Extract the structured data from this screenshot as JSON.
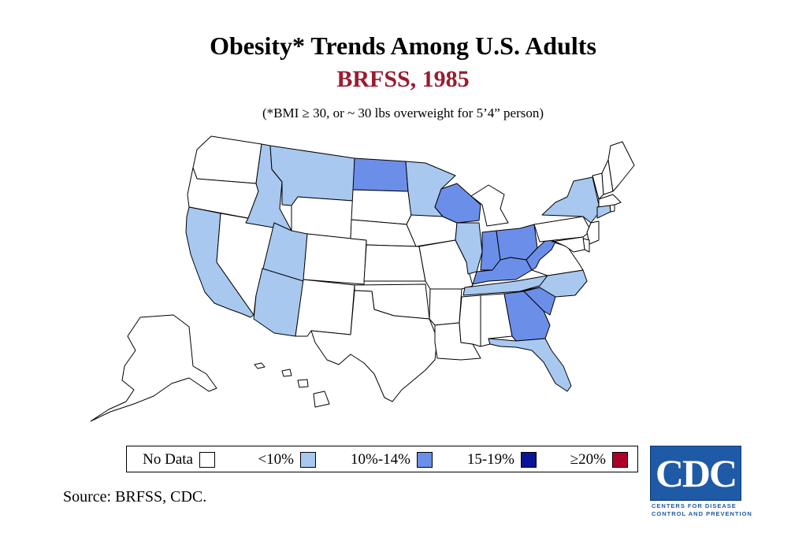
{
  "title": "Obesity* Trends Among U.S. Adults",
  "subtitle": "BRFSS, 1985",
  "footnote": "(*BMI ≥ 30, or ~ 30 lbs overweight for 5’4” person)",
  "source": "Source: BRFSS, CDC.",
  "colors": {
    "no_data": "#ffffff",
    "lt10": "#a8c8f0",
    "10_14": "#6b8ee8",
    "15_19": "#0a1496",
    "ge20": "#b0002a",
    "subtitle": "#9b1b30"
  },
  "legend": [
    {
      "label": "No Data",
      "key": "no_data"
    },
    {
      "label": "<10%",
      "key": "lt10"
    },
    {
      "label": "10%-14%",
      "key": "10_14"
    },
    {
      "label": "15-19%",
      "key": "15_19"
    },
    {
      "label": "≥20%",
      "key": "ge20"
    }
  ],
  "states": {
    "WA": "no_data",
    "OR": "no_data",
    "CA": "lt10",
    "NV": "no_data",
    "ID": "lt10",
    "MT": "lt10",
    "WY": "no_data",
    "UT": "lt10",
    "AZ": "lt10",
    "CO": "no_data",
    "NM": "no_data",
    "ND": "10_14",
    "SD": "no_data",
    "NE": "no_data",
    "KS": "no_data",
    "OK": "no_data",
    "TX": "no_data",
    "MN": "lt10",
    "IA": "no_data",
    "MO": "no_data",
    "AR": "no_data",
    "LA": "no_data",
    "WI": "10_14",
    "IL": "lt10",
    "MI": "no_data",
    "IN": "10_14",
    "OH": "10_14",
    "KY": "10_14",
    "TN": "lt10",
    "MS": "no_data",
    "AL": "no_data",
    "GA": "10_14",
    "FL": "lt10",
    "SC": "10_14",
    "NC": "lt10",
    "VA": "no_data",
    "WV": "10_14",
    "PA": "no_data",
    "NY": "lt10",
    "VT": "no_data",
    "NH": "no_data",
    "ME": "no_data",
    "MA": "no_data",
    "RI": "no_data",
    "CT": "lt10",
    "NJ": "no_data",
    "DE": "no_data",
    "MD": "no_data",
    "AK": "no_data",
    "HI": "no_data"
  },
  "logo": {
    "text": "CDC",
    "line1": "CENTERS FOR DISEASE",
    "line2": "CONTROL AND PREVENTION"
  }
}
